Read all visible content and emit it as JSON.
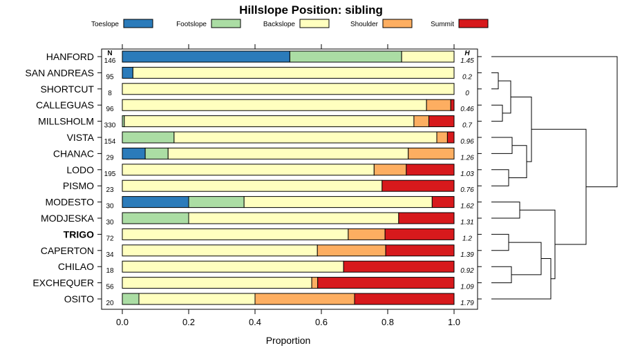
{
  "chart_data": {
    "type": "bar",
    "stacked": true,
    "orientation": "horizontal",
    "title": "Hillslope Position: sibling",
    "xlabel": "Proportion",
    "xlim": [
      0,
      1
    ],
    "xticks": [
      "0.0",
      "0.2",
      "0.4",
      "0.6",
      "0.8",
      "1.0"
    ],
    "n_header": "N",
    "h_header": "H",
    "legend_position": "top",
    "series": [
      {
        "name": "Toeslope",
        "color": "#2b7bba"
      },
      {
        "name": "Footslope",
        "color": "#abdda4"
      },
      {
        "name": "Backslope",
        "color": "#ffffbf"
      },
      {
        "name": "Shoulder",
        "color": "#fdae61"
      },
      {
        "name": "Summit",
        "color": "#d7191c"
      }
    ],
    "rows": [
      {
        "name": "HANFORD",
        "n": "146",
        "h": "1.45",
        "bold": false,
        "values": [
          0.505,
          0.337,
          0.158,
          0.0,
          0.0
        ]
      },
      {
        "name": "SAN ANDREAS",
        "n": "95",
        "h": "0.2",
        "bold": false,
        "values": [
          0.032,
          0.0,
          0.968,
          0.0,
          0.0
        ]
      },
      {
        "name": "SHORTCUT",
        "n": "8",
        "h": "0",
        "bold": false,
        "values": [
          0.0,
          0.0,
          1.0,
          0.0,
          0.0
        ]
      },
      {
        "name": "CALLEGUAS",
        "n": "96",
        "h": "0.46",
        "bold": false,
        "values": [
          0.0,
          0.0,
          0.917,
          0.073,
          0.01
        ]
      },
      {
        "name": "MILLSHOLM",
        "n": "330",
        "h": "0.7",
        "bold": false,
        "values": [
          0.0,
          0.006,
          0.873,
          0.045,
          0.076
        ]
      },
      {
        "name": "VISTA",
        "n": "154",
        "h": "0.96",
        "bold": false,
        "values": [
          0.0,
          0.156,
          0.792,
          0.032,
          0.02
        ]
      },
      {
        "name": "CHANAC",
        "n": "29",
        "h": "1.26",
        "bold": false,
        "values": [
          0.069,
          0.069,
          0.724,
          0.138,
          0.0
        ]
      },
      {
        "name": "LODO",
        "n": "195",
        "h": "1.03",
        "bold": false,
        "values": [
          0.0,
          0.0,
          0.759,
          0.097,
          0.144
        ]
      },
      {
        "name": "PISMO",
        "n": "23",
        "h": "0.76",
        "bold": false,
        "values": [
          0.0,
          0.0,
          0.783,
          0.0,
          0.217
        ]
      },
      {
        "name": "MODESTO",
        "n": "30",
        "h": "1.62",
        "bold": false,
        "values": [
          0.2,
          0.167,
          0.567,
          0.0,
          0.066
        ]
      },
      {
        "name": "MODJESKA",
        "n": "30",
        "h": "1.31",
        "bold": false,
        "values": [
          0.0,
          0.2,
          0.633,
          0.0,
          0.167
        ]
      },
      {
        "name": "TRIGO",
        "n": "72",
        "h": "1.2",
        "bold": true,
        "values": [
          0.0,
          0.0,
          0.681,
          0.111,
          0.208
        ]
      },
      {
        "name": "CAPERTON",
        "n": "34",
        "h": "1.39",
        "bold": false,
        "values": [
          0.0,
          0.0,
          0.588,
          0.206,
          0.206
        ]
      },
      {
        "name": "CHILAO",
        "n": "18",
        "h": "0.92",
        "bold": false,
        "values": [
          0.0,
          0.0,
          0.667,
          0.0,
          0.333
        ]
      },
      {
        "name": "EXCHEQUER",
        "n": "56",
        "h": "1.09",
        "bold": false,
        "values": [
          0.0,
          0.0,
          0.571,
          0.018,
          0.411
        ]
      },
      {
        "name": "OSITO",
        "n": "20",
        "h": "1.79",
        "bold": false,
        "values": [
          0.0,
          0.05,
          0.35,
          0.3,
          0.3
        ]
      }
    ]
  }
}
